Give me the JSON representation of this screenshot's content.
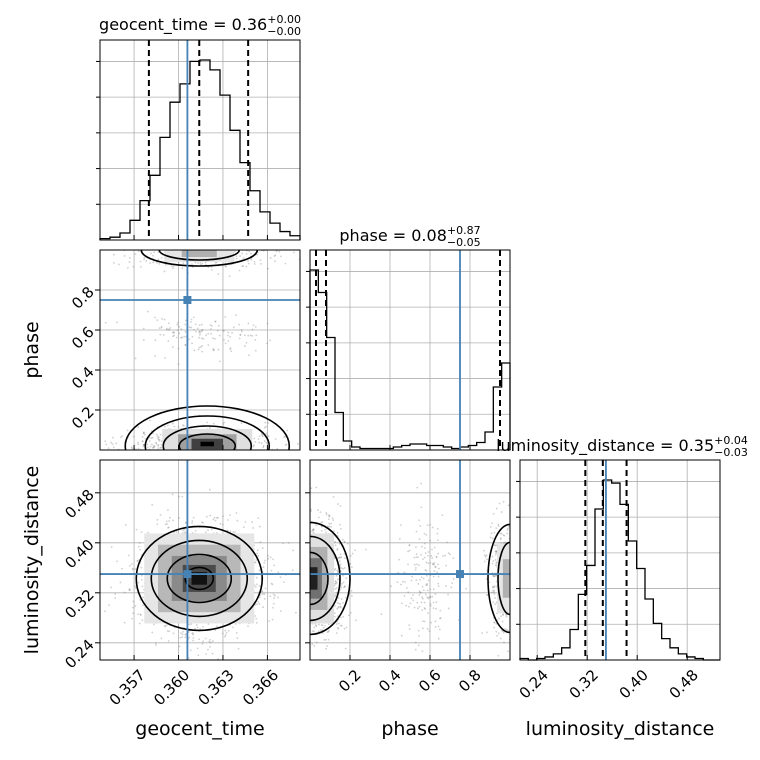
{
  "chart_data": {
    "type": "corner",
    "parameters": [
      "geocent_time",
      "phase",
      "luminosity_distance"
    ],
    "ranges": {
      "geocent_time": [
        0.3547,
        0.3682
      ],
      "phase": [
        0.0,
        1.0
      ],
      "luminosity_distance": [
        0.2125,
        0.5325
      ]
    },
    "truth": {
      "geocent_time": 0.3606,
      "phase": 0.75,
      "luminosity_distance": 0.35
    },
    "titles": [
      {
        "param": "geocent_time",
        "label": "geocent_time = 0.36",
        "plus": "+0.00",
        "minus": "−0.00"
      },
      {
        "param": "phase",
        "label": "phase = 0.08",
        "plus": "+0.87",
        "minus": "−0.05"
      },
      {
        "param": "luminosity_distance",
        "label": "luminosity_distance = 0.35",
        "plus": "+0.04",
        "minus": "−0.03"
      }
    ],
    "axis_labels": {
      "geocent_time": "geocent_time",
      "phase": "phase",
      "luminosity_distance": "luminosity_distance"
    },
    "ticks": {
      "geocent_time": {
        "values": [
          0.357,
          0.36,
          0.363,
          0.366
        ],
        "labels": [
          "0.357",
          "0.360",
          "0.363",
          "0.366"
        ]
      },
      "phase": {
        "values": [
          0.2,
          0.4,
          0.6,
          0.8
        ],
        "labels": [
          "0.2",
          "0.4",
          "0.6",
          "0.8"
        ]
      },
      "luminosity_distance": {
        "values": [
          0.24,
          0.32,
          0.4,
          0.48
        ],
        "labels": [
          "0.24",
          "0.32",
          "0.40",
          "0.48"
        ]
      }
    },
    "histograms": {
      "geocent_time": {
        "quantiles": [
          0.358,
          0.3614,
          0.3647
        ],
        "counts": [
          1,
          2,
          5,
          14,
          28,
          46,
          73,
          98,
          111,
          127,
          128,
          121,
          103,
          78,
          55,
          35,
          20,
          12,
          6,
          3
        ]
      },
      "phase": {
        "quantiles": [
          0.03,
          0.08,
          0.95
        ],
        "counts": [
          120,
          105,
          75,
          25,
          6,
          2,
          1,
          1,
          1,
          1,
          2,
          3,
          4,
          4,
          3,
          3,
          2,
          1,
          2,
          3,
          5,
          12,
          42,
          58
        ]
      },
      "luminosity_distance": {
        "quantiles": [
          0.317,
          0.345,
          0.383
        ],
        "counts": [
          1,
          0,
          1,
          2,
          4,
          8,
          20,
          43,
          62,
          99,
          118,
          116,
          102,
          78,
          60,
          40,
          24,
          14,
          8,
          4,
          2,
          1,
          0,
          0
        ]
      }
    }
  }
}
